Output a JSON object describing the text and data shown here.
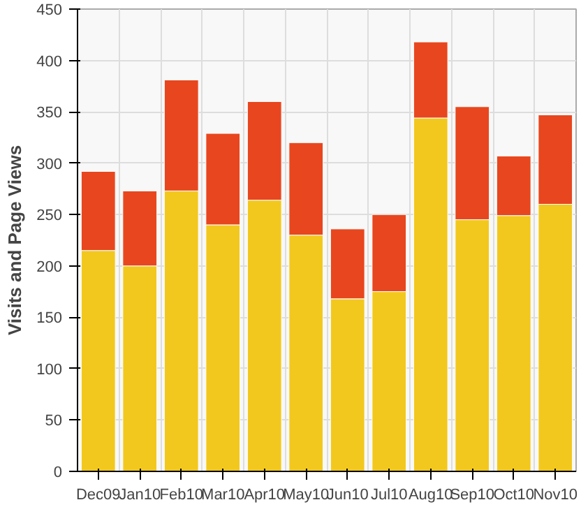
{
  "chart_data": {
    "type": "bar",
    "ylabel": "Visits and Page Views",
    "stacked": true,
    "categories": [
      "Dec09",
      "Jan10",
      "Feb10",
      "Mar10",
      "Apr10",
      "May10",
      "Jun10",
      "Jul10",
      "Aug10",
      "Sep10",
      "Oct10",
      "Nov10"
    ],
    "series": [
      {
        "color": "#f2c81e",
        "values": [
          215,
          200,
          273,
          240,
          264,
          230,
          168,
          175,
          344,
          245,
          249,
          260
        ]
      },
      {
        "color": "#e8461e",
        "values": [
          77,
          73,
          108,
          89,
          96,
          90,
          68,
          75,
          74,
          110,
          58,
          87
        ]
      }
    ],
    "ylim": [
      0,
      450
    ],
    "yticks": [
      0,
      50,
      100,
      150,
      200,
      250,
      300,
      350,
      400,
      450
    ],
    "grid": true
  }
}
